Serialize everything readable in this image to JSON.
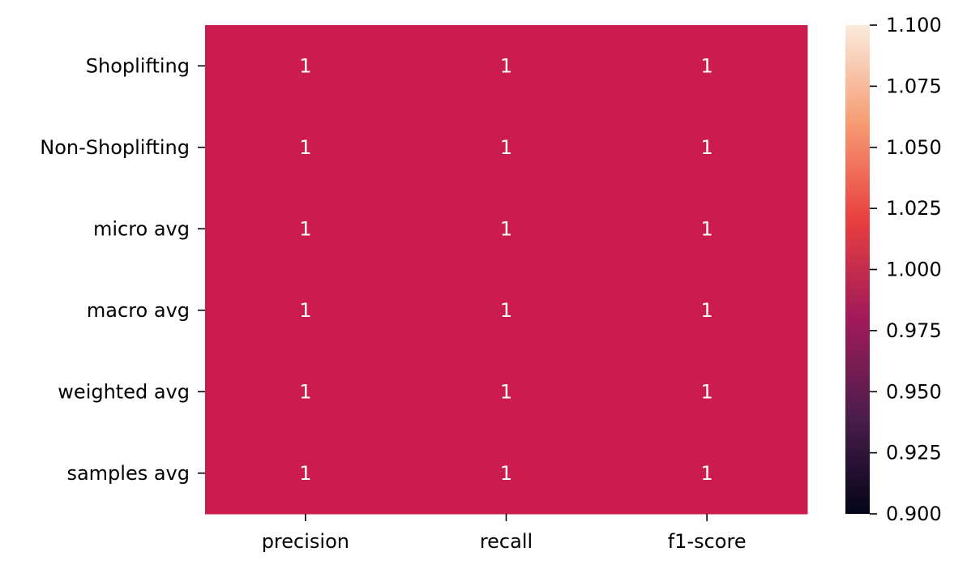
{
  "chart_data": {
    "type": "heatmap",
    "x_categories": [
      "precision",
      "recall",
      "f1-score"
    ],
    "y_categories": [
      "Shoplifting",
      "Non-Shoplifting",
      "micro avg",
      "macro avg",
      "weighted avg",
      "samples avg"
    ],
    "values": [
      [
        1,
        1,
        1
      ],
      [
        1,
        1,
        1
      ],
      [
        1,
        1,
        1
      ],
      [
        1,
        1,
        1
      ],
      [
        1,
        1,
        1
      ],
      [
        1,
        1,
        1
      ]
    ],
    "cell_labels": [
      [
        "1",
        "1",
        "1"
      ],
      [
        "1",
        "1",
        "1"
      ],
      [
        "1",
        "1",
        "1"
      ],
      [
        "1",
        "1",
        "1"
      ],
      [
        "1",
        "1",
        "1"
      ],
      [
        "1",
        "1",
        "1"
      ]
    ],
    "colorbar": {
      "range": [
        0.9,
        1.1
      ],
      "ticks": [
        "0.900",
        "0.925",
        "0.950",
        "0.975",
        "1.000",
        "1.025",
        "1.050",
        "1.075",
        "1.100"
      ],
      "colormap": "rocket",
      "stops": [
        "#03051a",
        "#4c1d4b",
        "#a11a5b",
        "#e83f3f",
        "#f69c73",
        "#faebdd"
      ]
    },
    "cell_color": "#cb1b4f",
    "annotation_color": "#ffffff",
    "title": "",
    "xlabel": "",
    "ylabel": ""
  }
}
